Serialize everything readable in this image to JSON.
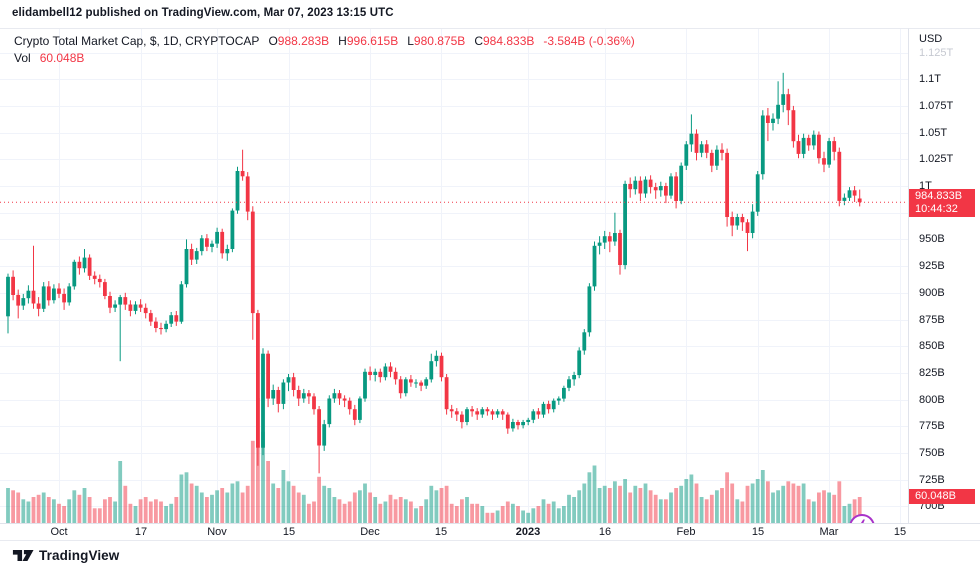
{
  "header": {
    "byline": "elidambell12 published on TradingView.com, Mar 07, 2023 13:15 UTC"
  },
  "legend": {
    "title": "Crypto Total Market Cap, $, 1D, CRYPTOCAP",
    "ohlc": [
      {
        "label": "O",
        "value": "988.283B"
      },
      {
        "label": "H",
        "value": "996.615B"
      },
      {
        "label": "L",
        "value": "980.875B"
      },
      {
        "label": "C",
        "value": "984.833B"
      }
    ],
    "change": "-3.584B (-0.36%)",
    "volume_label": "Vol",
    "volume_value": "60.048B"
  },
  "y_axis": {
    "currency": "USD",
    "ticks": [
      {
        "label": "1.125T",
        "value": 1125,
        "muted": true
      },
      {
        "label": "1.1T",
        "value": 1100
      },
      {
        "label": "1.075T",
        "value": 1075
      },
      {
        "label": "1.05T",
        "value": 1050
      },
      {
        "label": "1.025T",
        "value": 1025
      },
      {
        "label": "1T",
        "value": 1000
      },
      {
        "label": "",
        "value": 975
      },
      {
        "label": "950B",
        "value": 950
      },
      {
        "label": "925B",
        "value": 925
      },
      {
        "label": "900B",
        "value": 900
      },
      {
        "label": "875B",
        "value": 875
      },
      {
        "label": "850B",
        "value": 850
      },
      {
        "label": "825B",
        "value": 825
      },
      {
        "label": "800B",
        "value": 800
      },
      {
        "label": "775B",
        "value": 775
      },
      {
        "label": "750B",
        "value": 750
      },
      {
        "label": "725B",
        "value": 725
      },
      {
        "label": "700B",
        "value": 700
      }
    ]
  },
  "x_axis": {
    "ticks": [
      {
        "label": "Oct",
        "day": 10
      },
      {
        "label": "17",
        "day": 26
      },
      {
        "label": "Nov",
        "day": 41
      },
      {
        "label": "15",
        "day": 55
      },
      {
        "label": "Dec",
        "day": 71
      },
      {
        "label": "15",
        "day": 85
      },
      {
        "label": "2023",
        "day": 102,
        "bold": true
      },
      {
        "label": "16",
        "day": 117
      },
      {
        "label": "Feb",
        "day": 133
      },
      {
        "label": "15",
        "day": 147
      },
      {
        "label": "Mar",
        "day": 161
      },
      {
        "label": "15",
        "day": 175
      }
    ]
  },
  "price_marker": {
    "value": "984.833B",
    "countdown": "10:44:32",
    "price": 984.833
  },
  "volume_marker": {
    "value": "60.048B",
    "volume": 60.048
  },
  "footer": {
    "brand": "TradingView"
  },
  "colors": {
    "up": "#089981",
    "down": "#f23645",
    "grid": "#f0f3fa",
    "axis_border": "#e0e3eb",
    "text": "#131722",
    "muted_text": "#c6c9d1",
    "marker_bg": "#f23645",
    "marker_text": "#ffffff",
    "lightning": "#a832c9",
    "volume_opacity": 0.5
  },
  "chart_data": {
    "type": "candlestick",
    "title": "Crypto Total Market Cap",
    "symbol": "CRYPTOCAP",
    "currency": "$",
    "interval": "1D",
    "unit": "billions USD",
    "start_date": "2022-09-21",
    "end_date": "2023-03-07",
    "y_range": [
      675,
      1140
    ],
    "grid": true,
    "columns": [
      "open",
      "high",
      "low",
      "close",
      "volume"
    ],
    "candles": [
      [
        878,
        918,
        862,
        915,
        80
      ],
      [
        915,
        921,
        893,
        898,
        75
      ],
      [
        898,
        903,
        876,
        888,
        70
      ],
      [
        888,
        899,
        884,
        895,
        55
      ],
      [
        895,
        907,
        890,
        902,
        50
      ],
      [
        902,
        944,
        885,
        890,
        60
      ],
      [
        890,
        896,
        878,
        885,
        65
      ],
      [
        885,
        910,
        882,
        906,
        70
      ],
      [
        906,
        911,
        888,
        893,
        60
      ],
      [
        893,
        908,
        890,
        904,
        55
      ],
      [
        904,
        909,
        895,
        899,
        45
      ],
      [
        899,
        904,
        884,
        891,
        40
      ],
      [
        891,
        909,
        888,
        906,
        55
      ],
      [
        906,
        931,
        903,
        929,
        75
      ],
      [
        929,
        934,
        917,
        923,
        65
      ],
      [
        923,
        941,
        919,
        933,
        80
      ],
      [
        933,
        936,
        912,
        916,
        60
      ],
      [
        916,
        920,
        908,
        913,
        35
      ],
      [
        913,
        917,
        905,
        910,
        35
      ],
      [
        910,
        913,
        894,
        897,
        55
      ],
      [
        897,
        901,
        881,
        886,
        60
      ],
      [
        886,
        893,
        882,
        889,
        50
      ],
      [
        889,
        898,
        836,
        896,
        140
      ],
      [
        896,
        900,
        884,
        889,
        85
      ],
      [
        889,
        893,
        878,
        883,
        45
      ],
      [
        883,
        892,
        880,
        889,
        40
      ],
      [
        889,
        894,
        882,
        886,
        55
      ],
      [
        886,
        890,
        876,
        881,
        60
      ],
      [
        881,
        884,
        869,
        873,
        50
      ],
      [
        873,
        877,
        863,
        867,
        55
      ],
      [
        867,
        872,
        861,
        866,
        50
      ],
      [
        866,
        874,
        863,
        871,
        40
      ],
      [
        871,
        882,
        868,
        879,
        45
      ],
      [
        879,
        883,
        869,
        873,
        60
      ],
      [
        873,
        911,
        871,
        908,
        110
      ],
      [
        908,
        950,
        905,
        941,
        115
      ],
      [
        941,
        946,
        926,
        931,
        90
      ],
      [
        931,
        942,
        927,
        939,
        85
      ],
      [
        939,
        954,
        935,
        951,
        70
      ],
      [
        951,
        955,
        939,
        943,
        60
      ],
      [
        943,
        949,
        938,
        946,
        65
      ],
      [
        946,
        961,
        942,
        957,
        75
      ],
      [
        957,
        960,
        932,
        937,
        80
      ],
      [
        937,
        945,
        930,
        941,
        70
      ],
      [
        941,
        979,
        938,
        977,
        90
      ],
      [
        977,
        1018,
        974,
        1014,
        95
      ],
      [
        1014,
        1034,
        1005,
        1009,
        70
      ],
      [
        1009,
        1013,
        968,
        976,
        85
      ],
      [
        976,
        981,
        856,
        881,
        185
      ],
      [
        881,
        884,
        738,
        755,
        280
      ],
      [
        755,
        848,
        748,
        843,
        205
      ],
      [
        843,
        846,
        793,
        801,
        140
      ],
      [
        801,
        814,
        795,
        809,
        90
      ],
      [
        809,
        812,
        788,
        796,
        80
      ],
      [
        796,
        819,
        791,
        816,
        120
      ],
      [
        816,
        824,
        808,
        821,
        95
      ],
      [
        821,
        825,
        803,
        809,
        85
      ],
      [
        809,
        813,
        794,
        801,
        70
      ],
      [
        801,
        810,
        797,
        806,
        65
      ],
      [
        806,
        809,
        796,
        803,
        45
      ],
      [
        803,
        806,
        786,
        791,
        50
      ],
      [
        791,
        794,
        731,
        757,
        105
      ],
      [
        757,
        781,
        752,
        777,
        85
      ],
      [
        777,
        804,
        774,
        801,
        80
      ],
      [
        801,
        810,
        797,
        806,
        60
      ],
      [
        806,
        809,
        795,
        801,
        55
      ],
      [
        801,
        804,
        793,
        799,
        45
      ],
      [
        799,
        802,
        786,
        791,
        50
      ],
      [
        791,
        795,
        776,
        781,
        70
      ],
      [
        781,
        803,
        778,
        801,
        75
      ],
      [
        801,
        829,
        798,
        826,
        90
      ],
      [
        826,
        831,
        818,
        823,
        70
      ],
      [
        823,
        829,
        817,
        826,
        60
      ],
      [
        826,
        829,
        816,
        821,
        45
      ],
      [
        821,
        834,
        818,
        831,
        50
      ],
      [
        831,
        835,
        821,
        826,
        65
      ],
      [
        826,
        830,
        814,
        819,
        55
      ],
      [
        819,
        822,
        801,
        806,
        60
      ],
      [
        806,
        821,
        803,
        819,
        55
      ],
      [
        819,
        823,
        812,
        816,
        50
      ],
      [
        816,
        819,
        811,
        816,
        35
      ],
      [
        816,
        818,
        808,
        813,
        40
      ],
      [
        813,
        821,
        810,
        819,
        55
      ],
      [
        819,
        843,
        816,
        836,
        85
      ],
      [
        836,
        846,
        831,
        841,
        75
      ],
      [
        841,
        844,
        817,
        821,
        80
      ],
      [
        821,
        824,
        786,
        791,
        85
      ],
      [
        791,
        795,
        783,
        789,
        45
      ],
      [
        789,
        792,
        780,
        786,
        40
      ],
      [
        786,
        789,
        773,
        779,
        55
      ],
      [
        779,
        793,
        776,
        791,
        60
      ],
      [
        791,
        794,
        784,
        789,
        45
      ],
      [
        789,
        792,
        781,
        786,
        45
      ],
      [
        786,
        793,
        783,
        791,
        40
      ],
      [
        791,
        793,
        785,
        789,
        25
      ],
      [
        789,
        791,
        781,
        786,
        25
      ],
      [
        786,
        791,
        783,
        789,
        30
      ],
      [
        789,
        791,
        781,
        786,
        40
      ],
      [
        786,
        788,
        768,
        773,
        50
      ],
      [
        773,
        782,
        770,
        779,
        45
      ],
      [
        779,
        781,
        772,
        776,
        40
      ],
      [
        776,
        781,
        773,
        779,
        30
      ],
      [
        779,
        783,
        776,
        781,
        25
      ],
      [
        781,
        791,
        778,
        789,
        35
      ],
      [
        789,
        792,
        782,
        786,
        40
      ],
      [
        786,
        798,
        783,
        796,
        55
      ],
      [
        796,
        799,
        787,
        791,
        45
      ],
      [
        791,
        801,
        788,
        799,
        50
      ],
      [
        799,
        803,
        795,
        801,
        35
      ],
      [
        801,
        813,
        798,
        811,
        40
      ],
      [
        811,
        822,
        808,
        819,
        65
      ],
      [
        819,
        826,
        813,
        823,
        60
      ],
      [
        823,
        849,
        820,
        846,
        75
      ],
      [
        846,
        866,
        842,
        863,
        90
      ],
      [
        863,
        909,
        859,
        906,
        115
      ],
      [
        906,
        948,
        902,
        944,
        130
      ],
      [
        944,
        953,
        936,
        947,
        80
      ],
      [
        947,
        958,
        941,
        953,
        85
      ],
      [
        953,
        957,
        938,
        948,
        80
      ],
      [
        948,
        975,
        944,
        956,
        95
      ],
      [
        956,
        959,
        917,
        926,
        85
      ],
      [
        926,
        1005,
        922,
        1002,
        100
      ],
      [
        1002,
        1008,
        989,
        997,
        70
      ],
      [
        997,
        1009,
        992,
        1005,
        85
      ],
      [
        1005,
        1009,
        986,
        993,
        80
      ],
      [
        993,
        1009,
        989,
        1006,
        90
      ],
      [
        1006,
        1010,
        993,
        999,
        75
      ],
      [
        999,
        1003,
        988,
        996,
        65
      ],
      [
        996,
        1004,
        990,
        1000,
        55
      ],
      [
        1000,
        1003,
        984,
        991,
        55
      ],
      [
        991,
        1012,
        988,
        1009,
        70
      ],
      [
        1009,
        1013,
        979,
        986,
        80
      ],
      [
        986,
        1022,
        983,
        1019,
        85
      ],
      [
        1019,
        1042,
        1015,
        1039,
        100
      ],
      [
        1039,
        1067,
        1032,
        1049,
        110
      ],
      [
        1049,
        1053,
        1024,
        1031,
        90
      ],
      [
        1031,
        1042,
        1027,
        1039,
        60
      ],
      [
        1039,
        1043,
        1026,
        1031,
        55
      ],
      [
        1031,
        1034,
        1013,
        1019,
        65
      ],
      [
        1019,
        1038,
        1015,
        1034,
        75
      ],
      [
        1034,
        1040,
        1024,
        1031,
        80
      ],
      [
        1031,
        1035,
        962,
        971,
        115
      ],
      [
        971,
        976,
        953,
        963,
        90
      ],
      [
        963,
        974,
        959,
        971,
        55
      ],
      [
        971,
        974,
        958,
        966,
        50
      ],
      [
        966,
        969,
        939,
        956,
        85
      ],
      [
        956,
        983,
        951,
        976,
        90
      ],
      [
        976,
        1014,
        972,
        1011,
        100
      ],
      [
        1011,
        1071,
        1006,
        1066,
        120
      ],
      [
        1066,
        1073,
        1042,
        1059,
        95
      ],
      [
        1059,
        1068,
        1052,
        1063,
        70
      ],
      [
        1063,
        1098,
        1058,
        1076,
        75
      ],
      [
        1076,
        1106,
        1069,
        1086,
        85
      ],
      [
        1086,
        1091,
        1057,
        1071,
        95
      ],
      [
        1071,
        1075,
        1036,
        1042,
        90
      ],
      [
        1042,
        1048,
        1026,
        1030,
        85
      ],
      [
        1030,
        1049,
        1026,
        1045,
        90
      ],
      [
        1045,
        1048,
        1033,
        1038,
        55
      ],
      [
        1038,
        1052,
        1034,
        1048,
        50
      ],
      [
        1048,
        1051,
        1021,
        1026,
        70
      ],
      [
        1026,
        1032,
        1013,
        1020,
        75
      ],
      [
        1020,
        1045,
        1017,
        1042,
        70
      ],
      [
        1042,
        1046,
        1024,
        1032,
        65
      ],
      [
        1032,
        1036,
        981,
        986,
        95
      ],
      [
        986,
        993,
        982,
        989,
        40
      ],
      [
        989,
        999,
        986,
        996,
        45
      ],
      [
        996,
        1000,
        985,
        991,
        55
      ],
      [
        988.3,
        996.6,
        980.9,
        984.8,
        60
      ]
    ]
  }
}
